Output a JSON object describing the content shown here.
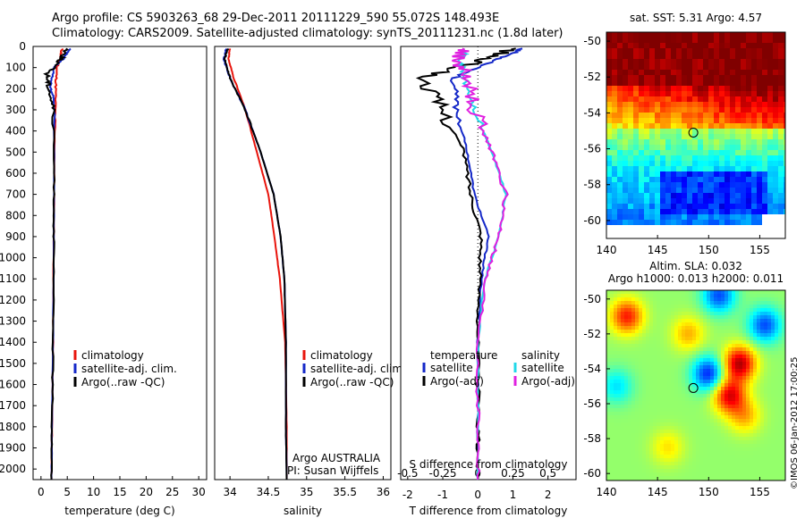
{
  "title_line1": "Argo profile: CS 5903263_68 29-Dec-2011 20111229_590 55.072S 148.493E",
  "title_line2": "Climatology: CARS2009. Satellite-adjusted climatology: synTS_20111231.nc (1.8d later)",
  "stamp": "©IMOS 06-Jan-2012 17:00:25",
  "colors": {
    "climatology": "#e8140c",
    "satellite": "#1428c8",
    "argo": "#000000",
    "sat_salinity": "#22d8e8",
    "argo_salinity": "#e020e0"
  },
  "chart_data": [
    {
      "type": "line",
      "id": "temperature",
      "xlabel": "temperature (deg C)",
      "xlim": [
        -1.5,
        31.5
      ],
      "ylim": [
        2050,
        0
      ],
      "xticks": [
        "0",
        "5",
        "10",
        "15",
        "20",
        "25",
        "30"
      ],
      "yticks": [
        "0",
        "100",
        "200",
        "300",
        "400",
        "500",
        "600",
        "700",
        "800",
        "900",
        "1000",
        "1100",
        "1200",
        "1300",
        "1400",
        "1500",
        "1600",
        "1700",
        "1800",
        "1900",
        "2000"
      ],
      "legend": [
        "climatology",
        "satellite-adj. clim.",
        "Argo(..raw -QC)"
      ],
      "series": [
        {
          "key": "climatology",
          "color": "#e8140c",
          "x": [
            4.0,
            3.6,
            3.0,
            2.8,
            2.6,
            2.5,
            2.4,
            2.3,
            2.1,
            2.0
          ],
          "y": [
            10,
            60,
            100,
            200,
            400,
            700,
            1000,
            1400,
            1800,
            2050
          ]
        },
        {
          "key": "satellite",
          "color": "#1428c8",
          "x": [
            5.5,
            4.2,
            2.4,
            1.8,
            2.5,
            2.5,
            2.4,
            2.3,
            2.1,
            2.0
          ],
          "y": [
            10,
            60,
            100,
            200,
            250,
            700,
            1000,
            1400,
            1800,
            2050
          ]
        },
        {
          "key": "argo",
          "color": "#000000",
          "x": [
            5.0,
            3.8,
            1.2,
            1.5,
            2.4,
            2.5,
            2.4,
            2.3,
            2.1,
            2.0
          ],
          "y": [
            10,
            60,
            130,
            190,
            300,
            700,
            1000,
            1400,
            1800,
            2050
          ]
        }
      ]
    },
    {
      "type": "line",
      "id": "salinity",
      "xlabel": "salinity",
      "xlim": [
        33.8,
        36.1
      ],
      "ylim": [
        2050,
        0
      ],
      "xticks": [
        "34",
        "34.5",
        "35",
        "35.5",
        "36"
      ],
      "legend": [
        "climatology",
        "satellite-adj. clim.",
        "Argo(..raw -QC)"
      ],
      "annotations": [
        "Argo AUSTRALIA",
        "PI: Susan Wijffels"
      ],
      "series": [
        {
          "key": "climatology",
          "color": "#e8140c",
          "x": [
            34.0,
            33.98,
            34.05,
            34.2,
            34.35,
            34.5,
            34.58,
            34.65,
            34.72,
            34.74,
            34.74
          ],
          "y": [
            10,
            60,
            150,
            300,
            500,
            700,
            900,
            1100,
            1400,
            1800,
            2050
          ]
        },
        {
          "key": "satellite",
          "color": "#1428c8",
          "x": [
            33.95,
            33.92,
            34.0,
            34.2,
            34.4,
            34.57,
            34.66,
            34.71,
            34.73,
            34.73,
            34.74
          ],
          "y": [
            10,
            60,
            150,
            300,
            500,
            700,
            900,
            1100,
            1400,
            1800,
            2050
          ]
        },
        {
          "key": "argo",
          "color": "#000000",
          "x": [
            33.97,
            33.93,
            34.0,
            34.2,
            34.4,
            34.57,
            34.66,
            34.71,
            34.73,
            34.73,
            34.74
          ],
          "y": [
            10,
            60,
            150,
            300,
            500,
            700,
            900,
            1100,
            1400,
            1800,
            2050
          ]
        }
      ]
    },
    {
      "type": "line",
      "id": "difference",
      "xlabel": "T difference from climatology",
      "xlabel_top": "S difference from climatology",
      "xlim": [
        -2.2,
        2.8
      ],
      "ylim": [
        2050,
        0
      ],
      "xticks": [
        "-2",
        "-1",
        "0",
        "1",
        "2"
      ],
      "xticks_s": [
        "-0.5",
        "-0.25",
        "0",
        "0.25",
        "0.5"
      ],
      "legend_left_title": "temperature",
      "legend_right_title": "salinity",
      "legend_left": [
        "satellite",
        "Argo(-adj)"
      ],
      "legend_right": [
        "satellite",
        "Argo(-adj)"
      ],
      "series": [
        {
          "key": "satellite",
          "color": "#1428c8",
          "x": [
            1.3,
            0.6,
            -0.7,
            -0.6,
            -0.3,
            -0.1,
            0.3,
            0.1,
            0.0,
            0.0,
            0.0
          ],
          "y": [
            10,
            60,
            150,
            300,
            500,
            700,
            900,
            1100,
            1400,
            1800,
            2050
          ]
        },
        {
          "key": "argo",
          "color": "#000000",
          "x": [
            1.0,
            0.2,
            -1.6,
            -1.0,
            -0.4,
            -0.2,
            0.1,
            0.05,
            0.0,
            0.0,
            0.0
          ],
          "y": [
            10,
            60,
            150,
            300,
            500,
            700,
            900,
            1100,
            1400,
            1800,
            2050
          ]
        },
        {
          "key": "sat_salinity",
          "color": "#22d8e8",
          "x": [
            -0.3,
            -0.5,
            -0.4,
            -0.1,
            0.4,
            0.8,
            0.6,
            0.2,
            0.0,
            0.0,
            0.0
          ],
          "y": [
            10,
            60,
            150,
            300,
            500,
            700,
            900,
            1100,
            1400,
            1800,
            2050
          ]
        },
        {
          "key": "argo_salinity",
          "color": "#e020e0",
          "x": [
            -0.4,
            -0.6,
            -0.3,
            -0.1,
            0.4,
            0.8,
            0.6,
            0.2,
            0.0,
            0.0,
            0.0
          ],
          "y": [
            10,
            60,
            150,
            300,
            500,
            700,
            900,
            1100,
            1400,
            1800,
            2050
          ]
        }
      ]
    },
    {
      "type": "heatmap",
      "id": "sst",
      "title": "sat. SST: 5.31  Argo: 4.57",
      "xlim": [
        140,
        157.5
      ],
      "ylim": [
        -61,
        -49.5
      ],
      "xticks": [
        "140",
        "145",
        "150",
        "155"
      ],
      "yticks": [
        "-50",
        "-52",
        "-54",
        "-56",
        "-58",
        "-60"
      ],
      "marker": [
        148.5,
        -55.1
      ]
    },
    {
      "type": "heatmap",
      "id": "sla",
      "title": "Altim. SLA: 0.032",
      "subtitle": "Argo h1000: 0.013 h2000: 0.011",
      "xlim": [
        140,
        157.5
      ],
      "ylim": [
        -60.4,
        -49.5
      ],
      "xticks": [
        "140",
        "145",
        "150",
        "155"
      ],
      "yticks": [
        "-50",
        "-52",
        "-54",
        "-56",
        "-58",
        "-60"
      ],
      "marker": [
        148.5,
        -55.1
      ]
    }
  ]
}
